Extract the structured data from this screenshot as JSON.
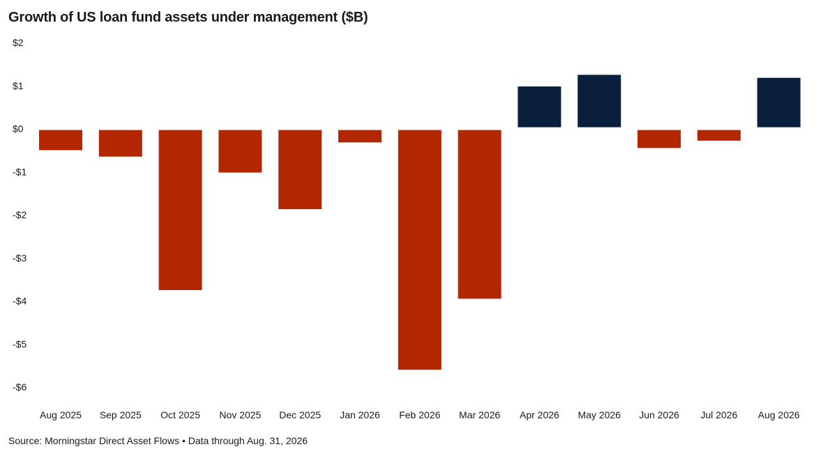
{
  "chart_data": {
    "type": "bar",
    "title": "Growth of US loan fund assets under management ($B)",
    "source": "Source: Morningstar Direct Asset Flows • Data through Aug. 31, 2026",
    "categories": [
      "Aug 2025",
      "Sep 2025",
      "Oct 2025",
      "Nov 2025",
      "Dec 2025",
      "Jan 2026",
      "Feb 2026",
      "Mar 2026",
      "Apr 2026",
      "May 2026",
      "Jun 2026",
      "Jul 2026",
      "Aug 2026"
    ],
    "values": [
      -0.5,
      -0.65,
      -3.75,
      -1.02,
      -1.87,
      -0.32,
      -5.6,
      -3.95,
      0.98,
      1.25,
      -0.45,
      -0.28,
      1.18
    ],
    "yticks": [
      2,
      1,
      0,
      -1,
      -2,
      -3,
      -4,
      -5,
      -6
    ],
    "ytick_labels": [
      "$2",
      "$1",
      "$0",
      "-$1",
      "-$2",
      "-$3",
      "-$4",
      "-$5",
      "-$6"
    ],
    "ylim": [
      -6,
      2
    ],
    "xlabel": "",
    "ylabel": "",
    "grid": false,
    "colors": {
      "negative": "#b22600",
      "positive": "#0a1f3c"
    }
  }
}
